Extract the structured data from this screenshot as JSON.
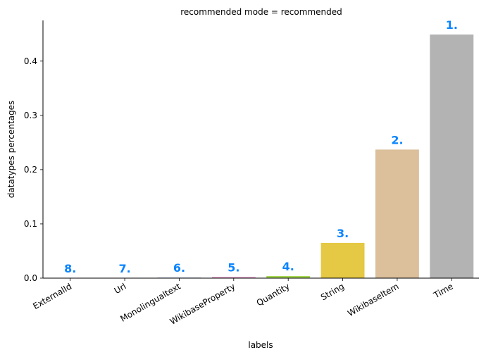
{
  "chart_data": {
    "type": "bar",
    "title": "recommended mode = recommended",
    "xlabel": "labels",
    "ylabel": "datatypes percentages",
    "categories": [
      "ExternalId",
      "Url",
      "Monolingualtext",
      "WikibaseProperty",
      "Quantity",
      "String",
      "WikibaseItem",
      "Time"
    ],
    "values": [
      0.0,
      0.0,
      0.001,
      0.002,
      0.004,
      0.065,
      0.237,
      0.449
    ],
    "bar_labels": [
      "8.",
      "7.",
      "6.",
      "5.",
      "4.",
      "3.",
      "2.",
      "1."
    ],
    "colors": [
      "#66c2a5",
      "#fc8d62",
      "#8da0cb",
      "#e78ac3",
      "#a6d854",
      "#e5c844",
      "#dbc09b",
      "#b3b3b3"
    ],
    "label_color": "#0a84ff",
    "ylim": [
      0,
      0.475
    ],
    "yticks": [
      0.0,
      0.1,
      0.2,
      0.3,
      0.4
    ],
    "ytick_labels": [
      "0.0",
      "0.1",
      "0.2",
      "0.3",
      "0.4"
    ],
    "grid": false,
    "legend": "none"
  }
}
